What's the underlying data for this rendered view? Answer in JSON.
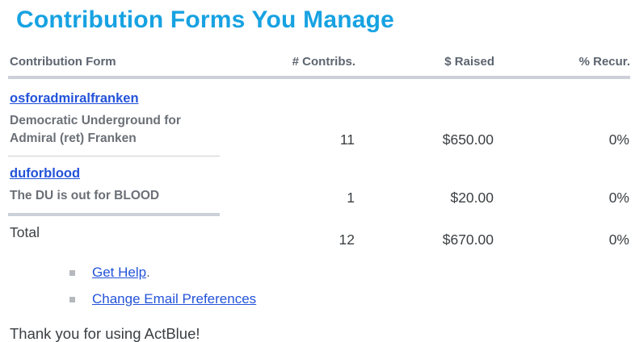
{
  "page": {
    "title": "Contribution Forms You Manage",
    "footer_text": "Thank you for using ActBlue!"
  },
  "table": {
    "columns": {
      "form": "Contribution Form",
      "contribs": "# Contribs.",
      "raised": "$ Raised",
      "recurring": "% Recur."
    },
    "rows": [
      {
        "form_slug": "osforadmiralfranken",
        "form_description": "Democratic Underground for Admiral (ret) Franken",
        "contribs": "11",
        "raised": "$650.00",
        "recurring": "0%"
      },
      {
        "form_slug": "duforblood",
        "form_description": "The DU is out for BLOOD",
        "contribs": "1",
        "raised": "$20.00",
        "recurring": "0%"
      }
    ],
    "total": {
      "label": "Total",
      "contribs": "12",
      "raised": "$670.00",
      "recurring": "0%"
    }
  },
  "links": {
    "get_help": "Get Help",
    "get_help_suffix": ".",
    "change_email_prefs": "Change Email Preferences"
  },
  "colors": {
    "title_blue": "#17a2e2",
    "link_blue": "#2353d9",
    "header_gray": "#5d6570",
    "description_gray": "#6b7077",
    "value_dark": "#3c4043",
    "border_thick": "#ccd0d9",
    "border_thin": "#cfcfcf"
  }
}
